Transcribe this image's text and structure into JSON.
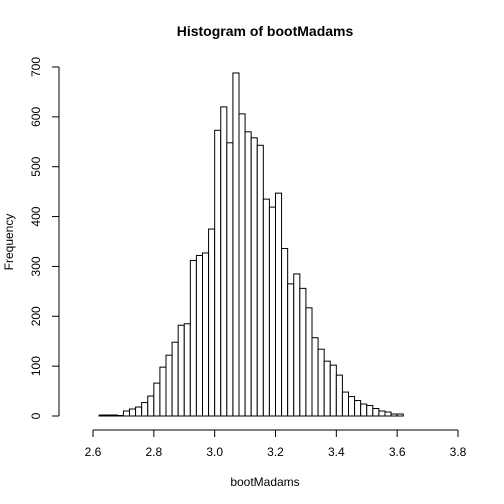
{
  "chart_data": {
    "type": "bar",
    "title": "Histogram of bootMadams",
    "xlabel": "bootMadams",
    "ylabel": "Frequency",
    "xlim": [
      2.55,
      3.8
    ],
    "ylim": [
      0,
      700
    ],
    "xticks": [
      2.6,
      2.8,
      3.0,
      3.2,
      3.4,
      3.6,
      3.8
    ],
    "yticks": [
      0,
      100,
      200,
      300,
      400,
      500,
      600,
      700
    ],
    "xtick_labels": [
      "2.6",
      "2.8",
      "3.0",
      "3.2",
      "3.4",
      "3.6",
      "3.8"
    ],
    "ytick_labels": [
      "0",
      "100",
      "200",
      "300",
      "400",
      "500",
      "600",
      "700"
    ],
    "bin_width": 0.02,
    "bin_starts": [
      2.62,
      2.64,
      2.66,
      2.68,
      2.7,
      2.72,
      2.74,
      2.76,
      2.78,
      2.8,
      2.82,
      2.84,
      2.86,
      2.88,
      2.9,
      2.92,
      2.94,
      2.96,
      2.98,
      3.0,
      3.02,
      3.04,
      3.06,
      3.08,
      3.1,
      3.12,
      3.14,
      3.16,
      3.18,
      3.2,
      3.22,
      3.24,
      3.26,
      3.28,
      3.3,
      3.32,
      3.34,
      3.36,
      3.38,
      3.4,
      3.42,
      3.44,
      3.46,
      3.48,
      3.5,
      3.52,
      3.54,
      3.56,
      3.58,
      3.6
    ],
    "values": [
      2,
      2,
      2,
      1,
      10,
      14,
      18,
      27,
      40,
      66,
      98,
      122,
      148,
      182,
      185,
      312,
      322,
      327,
      375,
      573,
      620,
      548,
      688,
      606,
      570,
      558,
      543,
      435,
      419,
      447,
      336,
      265,
      285,
      256,
      217,
      157,
      134,
      110,
      102,
      82,
      48,
      39,
      31,
      24,
      21,
      15,
      10,
      8,
      4,
      4
    ],
    "grid": false,
    "legend": "none"
  }
}
